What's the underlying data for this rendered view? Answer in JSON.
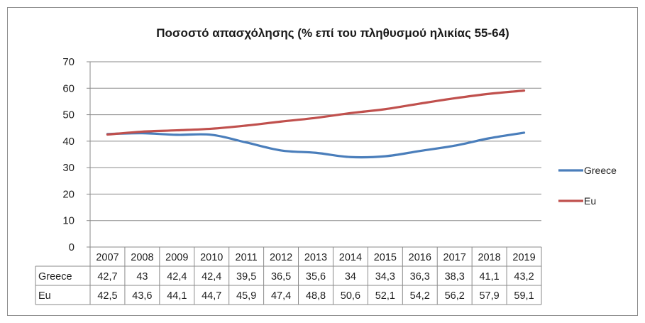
{
  "chart_data": {
    "type": "line",
    "title": "Ποσοστό απασχόλησης (% επί του πληθυσμού ηλικίας 55-64)",
    "categories": [
      "2007",
      "2008",
      "2009",
      "2010",
      "2011",
      "2012",
      "2013",
      "2014",
      "2015",
      "2016",
      "2017",
      "2018",
      "2019"
    ],
    "series": [
      {
        "name": "Greece",
        "color": "#4a7ebb",
        "values": [
          42.7,
          43,
          42.4,
          42.4,
          39.5,
          36.5,
          35.6,
          34,
          34.3,
          36.3,
          38.3,
          41.1,
          43.2
        ],
        "labels": [
          "42,7",
          "43",
          "42,4",
          "42,4",
          "39,5",
          "36,5",
          "35,6",
          "34",
          "34,3",
          "36,3",
          "38,3",
          "41,1",
          "43,2"
        ]
      },
      {
        "name": "Eu",
        "color": "#c0504d",
        "values": [
          42.5,
          43.6,
          44.1,
          44.7,
          45.9,
          47.4,
          48.8,
          50.6,
          52.1,
          54.2,
          56.2,
          57.9,
          59.1
        ],
        "labels": [
          "42,5",
          "43,6",
          "44,1",
          "44,7",
          "45,9",
          "47,4",
          "48,8",
          "50,6",
          "52,1",
          "54,2",
          "56,2",
          "57,9",
          "59,1"
        ]
      }
    ],
    "yticks": [
      "0",
      "10",
      "20",
      "30",
      "40",
      "50",
      "60",
      "70"
    ],
    "ylim": [
      0,
      70
    ],
    "grid": true,
    "legend": "right",
    "data_table": true
  }
}
